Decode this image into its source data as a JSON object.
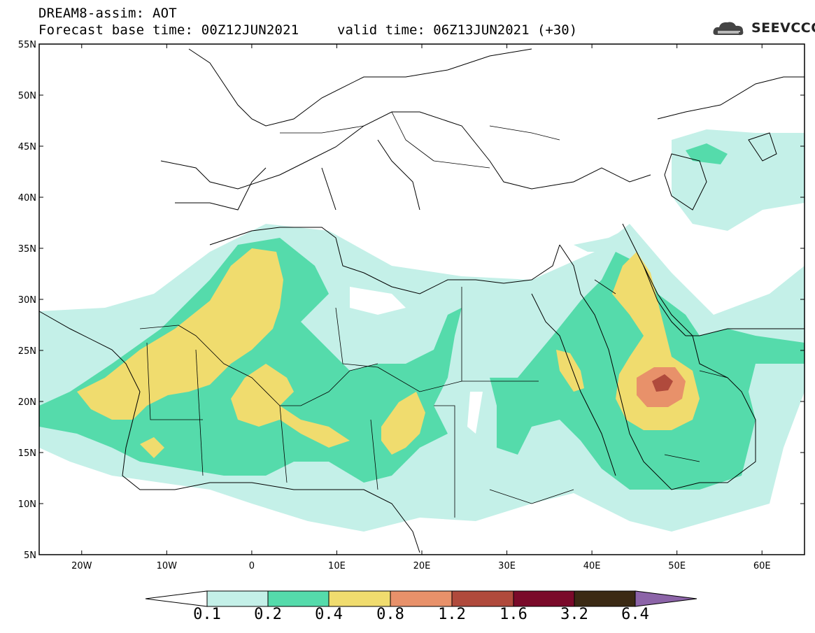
{
  "header": {
    "title": "DREAM8-assim: AOT",
    "base_time": "Forecast base time: 00Z12JUN2021",
    "valid_time": "valid time: 06Z13JUN2021 (+30)"
  },
  "logo": {
    "text": "SEEVCCC",
    "icon": "cloud-icon"
  },
  "map": {
    "lat_labels": [
      "55N",
      "50N",
      "45N",
      "40N",
      "35N",
      "30N",
      "25N",
      "20N",
      "15N",
      "10N",
      "5N"
    ],
    "lon_labels": [
      "20W",
      "10W",
      "0",
      "10E",
      "20E",
      "30E",
      "40E",
      "50E",
      "60E"
    ],
    "lon_range": [
      -25,
      65
    ],
    "lat_range": [
      5,
      55
    ]
  },
  "colorbar": {
    "labels": [
      "0.1",
      "0.2",
      "0.4",
      "0.8",
      "1.2",
      "1.6",
      "3.2",
      "6.4"
    ],
    "colors": [
      "#ffffff",
      "#c4f0e8",
      "#55dbab",
      "#f0dc6e",
      "#e8916a",
      "#b04a3c",
      "#7a0a2a",
      "#3b2a14",
      "#8c64a8"
    ]
  }
}
